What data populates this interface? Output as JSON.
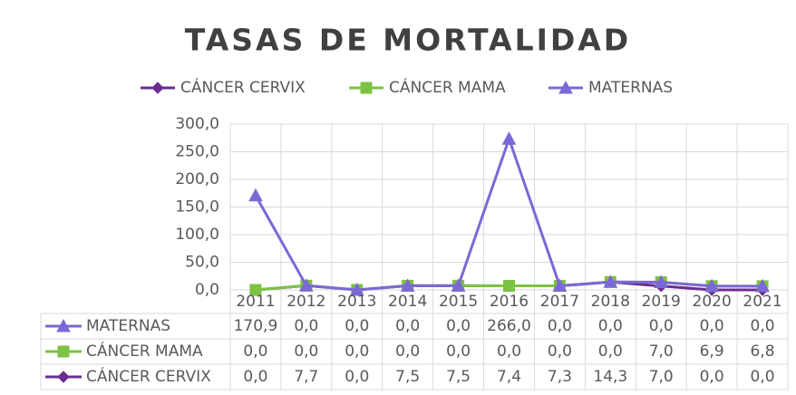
{
  "chart_data": {
    "type": "line",
    "title": "TASAS DE MORTALIDAD",
    "stacked": true,
    "data_table": true,
    "grid": true,
    "categories": [
      "2011",
      "2012",
      "2013",
      "2014",
      "2015",
      "2016",
      "2017",
      "2018",
      "2019",
      "2020",
      "2021"
    ],
    "series": [
      {
        "name": "CÁNCER CERVIX",
        "color": "#6b2c91",
        "marker": "diamond",
        "values": [
          0,
          7.7,
          0,
          7.5,
          7.5,
          7.4,
          7.3,
          14.3,
          7,
          0,
          0
        ],
        "value_labels": [
          "0,0",
          "7,7",
          "0,0",
          "7,5",
          "7,5",
          "7,4",
          "7,3",
          "14,3",
          "7,0",
          "0,0",
          "0,0"
        ]
      },
      {
        "name": "CÁNCER MAMA",
        "color": "#7dc242",
        "marker": "square",
        "values": [
          0,
          0,
          0,
          0,
          0,
          0,
          0,
          0,
          7,
          6.9,
          6.8
        ],
        "value_labels": [
          "0,0",
          "0,0",
          "0,0",
          "0,0",
          "0,0",
          "0,0",
          "0,0",
          "0,0",
          "7,0",
          "6,9",
          "6,8"
        ]
      },
      {
        "name": "MATERNAS",
        "color": "#7b68d6",
        "marker": "triangle",
        "values": [
          170.9,
          0,
          0,
          0,
          0,
          266,
          0,
          0,
          0,
          0,
          0
        ],
        "value_labels": [
          "170,9",
          "0,0",
          "0,0",
          "0,0",
          "0,0",
          "266,0",
          "0,0",
          "0,0",
          "0,0",
          "0,0",
          "0,0"
        ]
      }
    ],
    "ylim": [
      0,
      300
    ],
    "yticks": [
      {
        "value": 0,
        "label": "0,0"
      },
      {
        "value": 50,
        "label": "50,0"
      },
      {
        "value": 100,
        "label": "100,0"
      },
      {
        "value": 150,
        "label": "150,0"
      },
      {
        "value": 200,
        "label": "200,0"
      },
      {
        "value": 250,
        "label": "250,0"
      },
      {
        "value": 300,
        "label": "300,0"
      }
    ]
  }
}
